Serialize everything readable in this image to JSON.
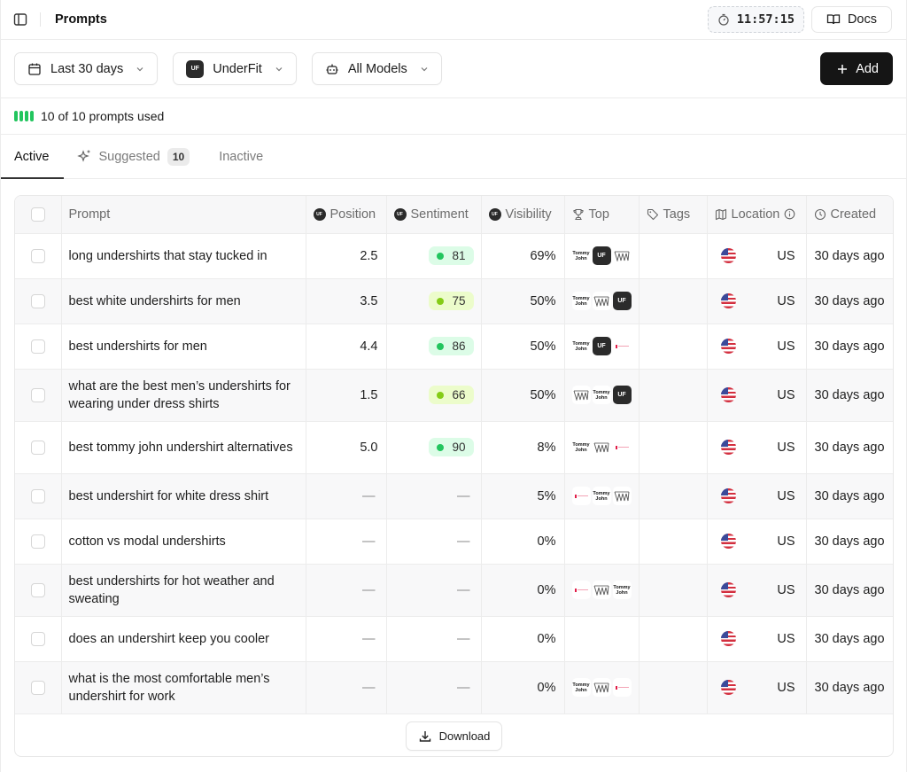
{
  "header": {
    "title": "Prompts",
    "timer": "11:57:15",
    "docs_label": "Docs"
  },
  "filters": {
    "date_range": "Last 30 days",
    "brand": "UnderFit",
    "brand_logo_text": "UF",
    "model": "All Models",
    "add_label": "Add"
  },
  "usage": {
    "text": "10 of 10 prompts used",
    "bars": 4,
    "color": "#22c55e"
  },
  "tabs": [
    {
      "label": "Active",
      "active": true
    },
    {
      "label": "Suggested",
      "count": "10",
      "active": false
    },
    {
      "label": "Inactive",
      "active": false
    }
  ],
  "table": {
    "columns": {
      "prompt": "Prompt",
      "position": "Position",
      "sentiment": "Sentiment",
      "visibility": "Visibility",
      "top": "Top",
      "tags": "Tags",
      "location": "Location",
      "created": "Created"
    },
    "rows": [
      {
        "prompt": "long undershirts that stay tucked in",
        "position": "2.5",
        "sentiment": "81",
        "sentiment_tone": "green",
        "visibility": "69%",
        "top": [
          "Tommy John",
          "UnderFit",
          "Wacoal-like"
        ],
        "tags": "",
        "location": "US",
        "created": "30 days ago"
      },
      {
        "prompt": "best white undershirts for men",
        "position": "3.5",
        "sentiment": "75",
        "sentiment_tone": "lime",
        "visibility": "50%",
        "top": [
          "Tommy John",
          "Wacoal-like",
          "UnderFit"
        ],
        "tags": "",
        "location": "US",
        "created": "30 days ago"
      },
      {
        "prompt": "best undershirts for men",
        "position": "4.4",
        "sentiment": "86",
        "sentiment_tone": "green",
        "visibility": "50%",
        "top": [
          "Tommy John",
          "UnderFit",
          "Red brand"
        ],
        "tags": "",
        "location": "US",
        "created": "30 days ago"
      },
      {
        "prompt": "what are the best men’s undershirts for wearing under dress shirts",
        "position": "1.5",
        "sentiment": "66",
        "sentiment_tone": "lime",
        "visibility": "50%",
        "top": [
          "Wacoal-like",
          "Tommy John",
          "UnderFit"
        ],
        "tags": "",
        "location": "US",
        "created": "30 days ago"
      },
      {
        "prompt": "best tommy john undershirt alternatives",
        "position": "5.0",
        "sentiment": "90",
        "sentiment_tone": "green",
        "visibility": "8%",
        "top": [
          "Tommy John",
          "Wacoal-like",
          "Red brand"
        ],
        "tags": "",
        "location": "US",
        "created": "30 days ago"
      },
      {
        "prompt": "best undershirt for white dress shirt",
        "position": "—",
        "sentiment": "—",
        "sentiment_tone": "none",
        "visibility": "5%",
        "top": [
          "Red brand",
          "Tommy John",
          "Wacoal-like"
        ],
        "tags": "",
        "location": "US",
        "created": "30 days ago"
      },
      {
        "prompt": "cotton vs modal undershirts",
        "position": "—",
        "sentiment": "—",
        "sentiment_tone": "none",
        "visibility": "0%",
        "top": [],
        "tags": "",
        "location": "US",
        "created": "30 days ago"
      },
      {
        "prompt": "best undershirts for hot weather and sweating",
        "position": "—",
        "sentiment": "—",
        "sentiment_tone": "none",
        "visibility": "0%",
        "top": [
          "Red brand",
          "Wacoal-like",
          "Tommy John"
        ],
        "tags": "",
        "location": "US",
        "created": "30 days ago"
      },
      {
        "prompt": "does an undershirt keep you cooler",
        "position": "—",
        "sentiment": "—",
        "sentiment_tone": "none",
        "visibility": "0%",
        "top": [],
        "tags": "",
        "location": "US",
        "created": "30 days ago"
      },
      {
        "prompt": "what is the most comfortable men’s undershirt for work",
        "position": "—",
        "sentiment": "—",
        "sentiment_tone": "none",
        "visibility": "0%",
        "top": [
          "Tommy John",
          "Wacoal-like",
          "Red brand"
        ],
        "tags": "",
        "location": "US",
        "created": "30 days ago"
      }
    ],
    "download_label": "Download"
  },
  "colors": {
    "sentiment_green_bg": "#dcfce7",
    "sentiment_green_dot": "#22c55e",
    "sentiment_lime_bg": "#ecfccb",
    "sentiment_lime_dot": "#84cc16",
    "primary_button": "#151515"
  },
  "icons": {
    "sidebar_toggle": "sidebar-icon",
    "timer": "stopwatch-icon",
    "docs": "book-open-icon",
    "date": "calendar-icon",
    "model": "bot-icon",
    "add": "plus-icon",
    "suggested": "sparkles-icon",
    "top": "trophy-icon",
    "tags": "tag-icon",
    "location": "map-icon",
    "info": "info-icon",
    "created": "clock-icon",
    "download": "download-icon"
  }
}
